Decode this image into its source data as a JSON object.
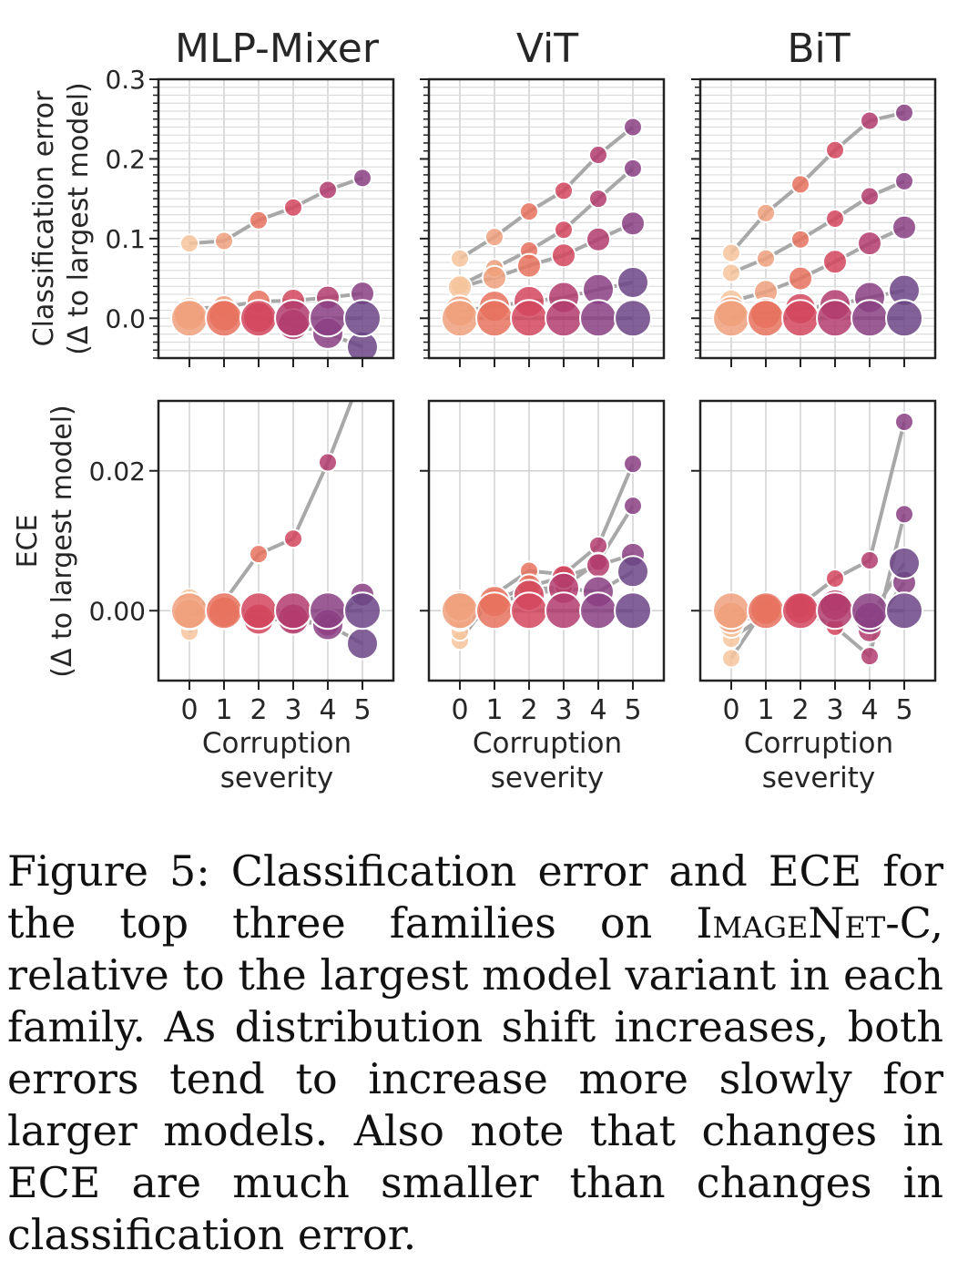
{
  "columns": [
    "MLP-Mixer",
    "ViT",
    "BiT"
  ],
  "row_labels": [
    [
      "Classification error",
      "(Δ to largest model)"
    ],
    [
      "ECE",
      "(Δ to largest model)"
    ]
  ],
  "xlabel": [
    "Corruption",
    "severity"
  ],
  "caption": {
    "prefix": "Figure 5: Classification error and ECE for the top three families on ",
    "dataset": "ImageNet",
    "dataset_suffix": "-C",
    "rest": ", relative to the largest model variant in each family. As distribution shift increases, both errors tend to increase more slowly for larger models.  Also note that changes in ECE are much smaller than changes in classification error."
  },
  "colors": [
    "#f6c49c",
    "#f0a07c",
    "#e8725e",
    "#d2475e",
    "#b13c6c",
    "#8a3f84",
    "#6b4585"
  ],
  "chart_data": [
    {
      "type": "line",
      "panel": "MLP-Mixer / Classification error",
      "x": [
        0,
        1,
        2,
        3,
        4,
        5
      ],
      "xticks": [
        0,
        1,
        2,
        3,
        4,
        5
      ],
      "ylim": [
        -0.05,
        0.3
      ],
      "yticks": [
        0.0,
        0.1,
        0.2,
        0.3
      ],
      "ytick_labels": [
        "0.0",
        "0.1",
        "0.2",
        "0.3"
      ],
      "series": [
        {
          "size": 0,
          "values": [
            0.094,
            0.097,
            0.123,
            0.139,
            0.161,
            0.176
          ]
        },
        {
          "size": 1,
          "values": [
            0.012,
            0.014,
            0.021,
            0.022,
            0.026,
            0.031
          ]
        },
        {
          "size": 2,
          "values": [
            0.004,
            0.003,
            0.001,
            -0.008,
            -0.019,
            -0.036
          ]
        },
        {
          "size": 3,
          "values": [
            0,
            0,
            0,
            0,
            0,
            0
          ]
        }
      ]
    },
    {
      "type": "line",
      "panel": "ViT / Classification error",
      "x": [
        0,
        1,
        2,
        3,
        4,
        5
      ],
      "xticks": [
        0,
        1,
        2,
        3,
        4,
        5
      ],
      "ylim": [
        -0.05,
        0.3
      ],
      "yticks": [
        0.0,
        0.1,
        0.2,
        0.3
      ],
      "ytick_labels": [
        "",
        "",
        "",
        ""
      ],
      "series": [
        {
          "size": 0,
          "values": [
            0.075,
            0.102,
            0.134,
            0.16,
            0.205,
            0.24
          ]
        },
        {
          "size": 0,
          "values": [
            0.041,
            0.063,
            0.085,
            0.111,
            0.15,
            0.188
          ]
        },
        {
          "size": 1,
          "values": [
            0.039,
            0.051,
            0.066,
            0.079,
            0.099,
            0.119
          ]
        },
        {
          "size": 2,
          "values": [
            0.009,
            0.015,
            0.021,
            0.026,
            0.036,
            0.045
          ]
        },
        {
          "size": 3,
          "values": [
            0,
            0,
            0,
            0,
            0,
            0
          ]
        }
      ]
    },
    {
      "type": "line",
      "panel": "BiT / Classification error",
      "x": [
        0,
        1,
        2,
        3,
        4,
        5
      ],
      "xticks": [
        0,
        1,
        2,
        3,
        4,
        5
      ],
      "ylim": [
        -0.05,
        0.3
      ],
      "yticks": [
        0.0,
        0.1,
        0.2,
        0.3
      ],
      "ytick_labels": [
        "",
        "",
        "",
        ""
      ],
      "series": [
        {
          "size": 0,
          "values": [
            0.082,
            0.132,
            0.168,
            0.211,
            0.248,
            0.258
          ]
        },
        {
          "size": 0,
          "values": [
            0.057,
            0.075,
            0.099,
            0.125,
            0.153,
            0.172
          ]
        },
        {
          "size": 1,
          "values": [
            0.021,
            0.033,
            0.05,
            0.071,
            0.094,
            0.114
          ]
        },
        {
          "size": 2,
          "values": [
            0.008,
            0.006,
            0.012,
            0.017,
            0.026,
            0.035
          ]
        },
        {
          "size": 3,
          "values": [
            0,
            0,
            0,
            0,
            0,
            0
          ]
        }
      ]
    },
    {
      "type": "line",
      "panel": "MLP-Mixer / ECE",
      "x": [
        0,
        1,
        2,
        3,
        4,
        5
      ],
      "xticks": [
        0,
        1,
        2,
        3,
        4,
        5
      ],
      "ylim": [
        -0.01,
        0.03
      ],
      "yticks": [
        0.0,
        0.02
      ],
      "ytick_labels": [
        "0.00",
        "0.02"
      ],
      "series": [
        {
          "size": 0,
          "values": [
            -0.003,
            0.0013,
            0.0081,
            0.0103,
            0.0212,
            0.034
          ]
        },
        {
          "size": 1,
          "values": [
            0.0015,
            0.0005,
            -0.001,
            -0.0015,
            -0.002,
            0.0023
          ]
        },
        {
          "size": 2,
          "values": [
            -0.0005,
            -0.0002,
            -0.0012,
            -0.0012,
            -0.002,
            -0.0047
          ]
        },
        {
          "size": 3,
          "values": [
            0,
            0,
            0,
            0,
            0,
            0
          ]
        }
      ]
    },
    {
      "type": "line",
      "panel": "ViT / ECE",
      "x": [
        0,
        1,
        2,
        3,
        4,
        5
      ],
      "xticks": [
        0,
        1,
        2,
        3,
        4,
        5
      ],
      "ylim": [
        -0.01,
        0.03
      ],
      "yticks": [
        0.0,
        0.02
      ],
      "ytick_labels": [
        "",
        ""
      ],
      "series": [
        {
          "size": 0,
          "values": [
            -0.0043,
            0.0023,
            0.0057,
            0.0052,
            0.0093,
            0.021
          ]
        },
        {
          "size": 0,
          "values": [
            -0.003,
            0.0019,
            0.003,
            0.0034,
            0.007,
            0.015
          ]
        },
        {
          "size": 1,
          "values": [
            -0.0012,
            0.0015,
            0.0035,
            0.0048,
            0.0065,
            0.008
          ]
        },
        {
          "size": 2,
          "values": [
            0.0007,
            0.0013,
            0.0022,
            0.0032,
            0.0027,
            0.0056
          ]
        },
        {
          "size": 3,
          "values": [
            0,
            0,
            0,
            0,
            0,
            0
          ]
        }
      ]
    },
    {
      "type": "line",
      "panel": "BiT / ECE",
      "x": [
        0,
        1,
        2,
        3,
        4,
        5
      ],
      "xticks": [
        0,
        1,
        2,
        3,
        4,
        5
      ],
      "ylim": [
        -0.01,
        0.03
      ],
      "yticks": [
        0.0,
        0.02
      ],
      "ytick_labels": [
        "",
        ""
      ],
      "series": [
        {
          "size": 0,
          "values": [
            -0.0068,
            0.0006,
            0.0008,
            0.0046,
            0.0072,
            0.027
          ]
        },
        {
          "size": 0,
          "values": [
            -0.004,
            -0.0006,
            0.0002,
            -0.0023,
            -0.0065,
            0.0138
          ]
        },
        {
          "size": 1,
          "values": [
            -0.0022,
            0.0,
            0.0006,
            0.0015,
            -0.0028,
            0.004
          ]
        },
        {
          "size": 2,
          "values": [
            -0.001,
            0.0002,
            0.0003,
            0.0008,
            -0.001,
            0.0068
          ]
        },
        {
          "size": 3,
          "values": [
            0,
            0,
            0,
            0,
            0,
            0
          ]
        }
      ]
    }
  ]
}
